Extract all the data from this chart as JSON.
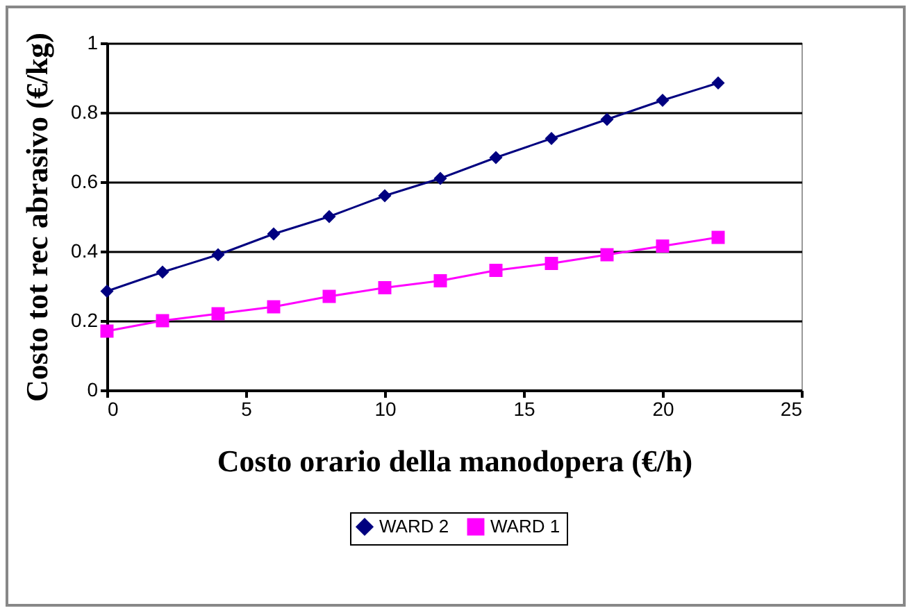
{
  "chart_data": {
    "type": "line",
    "xlabel": "Costo orario della manodopera (€/h)",
    "ylabel": "Costo tot rec abrasivo (€/kg)",
    "x": [
      0,
      2,
      4,
      6,
      8,
      10,
      12,
      14,
      16,
      18,
      20,
      22
    ],
    "series": [
      {
        "name": "WARD 2",
        "color": "#000080",
        "marker": "diamond",
        "values": [
          0.285,
          0.34,
          0.39,
          0.45,
          0.5,
          0.56,
          0.61,
          0.67,
          0.725,
          0.78,
          0.835,
          0.885
        ]
      },
      {
        "name": "WARD 1",
        "color": "#ff00ff",
        "marker": "square",
        "values": [
          0.17,
          0.2,
          0.22,
          0.24,
          0.27,
          0.295,
          0.315,
          0.345,
          0.365,
          0.39,
          0.415,
          0.44
        ]
      }
    ],
    "xlim": [
      0,
      25
    ],
    "xticks": [
      0,
      5,
      10,
      15,
      20,
      25
    ],
    "ylim": [
      0,
      1
    ],
    "yticks": [
      0,
      0.2,
      0.4,
      0.6,
      0.8,
      1
    ],
    "grid": "y",
    "legend": "bottom",
    "line_style": "solid"
  }
}
